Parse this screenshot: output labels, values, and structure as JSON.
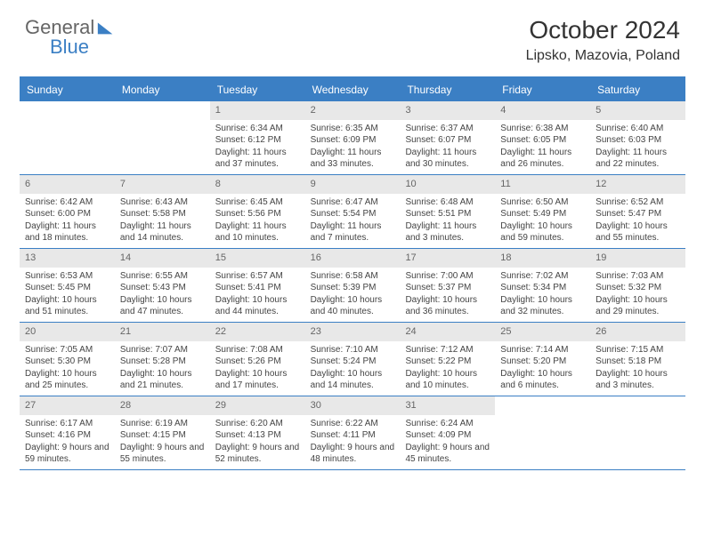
{
  "logo": {
    "text_general": "General",
    "text_blue": "Blue"
  },
  "title": "October 2024",
  "location": "Lipsko, Mazovia, Poland",
  "colors": {
    "header_bar": "#3b7fc4",
    "header_text": "#ffffff",
    "daynum_bg": "#e8e8e8",
    "daynum_text": "#666666",
    "body_text": "#444444",
    "rule": "#3b7fc4"
  },
  "weekdays": [
    "Sunday",
    "Monday",
    "Tuesday",
    "Wednesday",
    "Thursday",
    "Friday",
    "Saturday"
  ],
  "weeks": [
    [
      null,
      null,
      {
        "n": "1",
        "sunrise": "6:34 AM",
        "sunset": "6:12 PM",
        "daylight": "11 hours and 37 minutes."
      },
      {
        "n": "2",
        "sunrise": "6:35 AM",
        "sunset": "6:09 PM",
        "daylight": "11 hours and 33 minutes."
      },
      {
        "n": "3",
        "sunrise": "6:37 AM",
        "sunset": "6:07 PM",
        "daylight": "11 hours and 30 minutes."
      },
      {
        "n": "4",
        "sunrise": "6:38 AM",
        "sunset": "6:05 PM",
        "daylight": "11 hours and 26 minutes."
      },
      {
        "n": "5",
        "sunrise": "6:40 AM",
        "sunset": "6:03 PM",
        "daylight": "11 hours and 22 minutes."
      }
    ],
    [
      {
        "n": "6",
        "sunrise": "6:42 AM",
        "sunset": "6:00 PM",
        "daylight": "11 hours and 18 minutes."
      },
      {
        "n": "7",
        "sunrise": "6:43 AM",
        "sunset": "5:58 PM",
        "daylight": "11 hours and 14 minutes."
      },
      {
        "n": "8",
        "sunrise": "6:45 AM",
        "sunset": "5:56 PM",
        "daylight": "11 hours and 10 minutes."
      },
      {
        "n": "9",
        "sunrise": "6:47 AM",
        "sunset": "5:54 PM",
        "daylight": "11 hours and 7 minutes."
      },
      {
        "n": "10",
        "sunrise": "6:48 AM",
        "sunset": "5:51 PM",
        "daylight": "11 hours and 3 minutes."
      },
      {
        "n": "11",
        "sunrise": "6:50 AM",
        "sunset": "5:49 PM",
        "daylight": "10 hours and 59 minutes."
      },
      {
        "n": "12",
        "sunrise": "6:52 AM",
        "sunset": "5:47 PM",
        "daylight": "10 hours and 55 minutes."
      }
    ],
    [
      {
        "n": "13",
        "sunrise": "6:53 AM",
        "sunset": "5:45 PM",
        "daylight": "10 hours and 51 minutes."
      },
      {
        "n": "14",
        "sunrise": "6:55 AM",
        "sunset": "5:43 PM",
        "daylight": "10 hours and 47 minutes."
      },
      {
        "n": "15",
        "sunrise": "6:57 AM",
        "sunset": "5:41 PM",
        "daylight": "10 hours and 44 minutes."
      },
      {
        "n": "16",
        "sunrise": "6:58 AM",
        "sunset": "5:39 PM",
        "daylight": "10 hours and 40 minutes."
      },
      {
        "n": "17",
        "sunrise": "7:00 AM",
        "sunset": "5:37 PM",
        "daylight": "10 hours and 36 minutes."
      },
      {
        "n": "18",
        "sunrise": "7:02 AM",
        "sunset": "5:34 PM",
        "daylight": "10 hours and 32 minutes."
      },
      {
        "n": "19",
        "sunrise": "7:03 AM",
        "sunset": "5:32 PM",
        "daylight": "10 hours and 29 minutes."
      }
    ],
    [
      {
        "n": "20",
        "sunrise": "7:05 AM",
        "sunset": "5:30 PM",
        "daylight": "10 hours and 25 minutes."
      },
      {
        "n": "21",
        "sunrise": "7:07 AM",
        "sunset": "5:28 PM",
        "daylight": "10 hours and 21 minutes."
      },
      {
        "n": "22",
        "sunrise": "7:08 AM",
        "sunset": "5:26 PM",
        "daylight": "10 hours and 17 minutes."
      },
      {
        "n": "23",
        "sunrise": "7:10 AM",
        "sunset": "5:24 PM",
        "daylight": "10 hours and 14 minutes."
      },
      {
        "n": "24",
        "sunrise": "7:12 AM",
        "sunset": "5:22 PM",
        "daylight": "10 hours and 10 minutes."
      },
      {
        "n": "25",
        "sunrise": "7:14 AM",
        "sunset": "5:20 PM",
        "daylight": "10 hours and 6 minutes."
      },
      {
        "n": "26",
        "sunrise": "7:15 AM",
        "sunset": "5:18 PM",
        "daylight": "10 hours and 3 minutes."
      }
    ],
    [
      {
        "n": "27",
        "sunrise": "6:17 AM",
        "sunset": "4:16 PM",
        "daylight": "9 hours and 59 minutes."
      },
      {
        "n": "28",
        "sunrise": "6:19 AM",
        "sunset": "4:15 PM",
        "daylight": "9 hours and 55 minutes."
      },
      {
        "n": "29",
        "sunrise": "6:20 AM",
        "sunset": "4:13 PM",
        "daylight": "9 hours and 52 minutes."
      },
      {
        "n": "30",
        "sunrise": "6:22 AM",
        "sunset": "4:11 PM",
        "daylight": "9 hours and 48 minutes."
      },
      {
        "n": "31",
        "sunrise": "6:24 AM",
        "sunset": "4:09 PM",
        "daylight": "9 hours and 45 minutes."
      },
      null,
      null
    ]
  ]
}
